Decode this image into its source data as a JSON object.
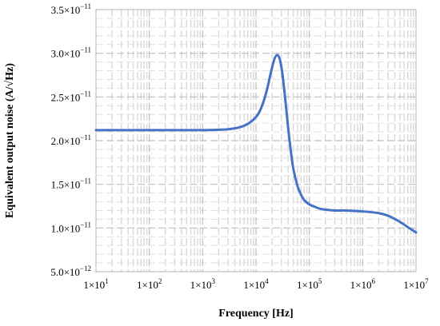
{
  "chart_data": {
    "type": "line",
    "xscale": "log",
    "xlim": [
      10,
      10000000
    ],
    "ylim": [
      5e-12,
      3.5e-11
    ],
    "xlabel": "Frequency [Hz]",
    "ylabel": "Equivalent output noise (A/√Hz)",
    "grid": true,
    "x_ticks": [
      {
        "value": 10,
        "mantissa": "1×10",
        "exp": "1"
      },
      {
        "value": 100,
        "mantissa": "1×10",
        "exp": "2"
      },
      {
        "value": 1000,
        "mantissa": "1×10",
        "exp": "3"
      },
      {
        "value": 10000,
        "mantissa": "1×10",
        "exp": "4"
      },
      {
        "value": 100000,
        "mantissa": "1×10",
        "exp": "5"
      },
      {
        "value": 1000000,
        "mantissa": "1×10",
        "exp": "6"
      },
      {
        "value": 10000000,
        "mantissa": "1×10",
        "exp": "7"
      }
    ],
    "y_ticks": [
      {
        "value": 5e-12,
        "mantissa": "5.0×10",
        "exp": "−12"
      },
      {
        "value": 1e-11,
        "mantissa": "1.0×10",
        "exp": "−11"
      },
      {
        "value": 1.5e-11,
        "mantissa": "1.5×10",
        "exp": "−11"
      },
      {
        "value": 2e-11,
        "mantissa": "2.0×10",
        "exp": "−11"
      },
      {
        "value": 2.5e-11,
        "mantissa": "2.5×10",
        "exp": "−11"
      },
      {
        "value": 3e-11,
        "mantissa": "3.0×10",
        "exp": "−11"
      },
      {
        "value": 3.5e-11,
        "mantissa": "3.5×10",
        "exp": "−11"
      }
    ],
    "series": [
      {
        "color": "#4472c4",
        "x": [
          10,
          100,
          1000,
          3000,
          6000,
          10000,
          13000,
          16000,
          19000,
          22000,
          25000,
          28000,
          31000,
          35000,
          40000,
          45000,
          50000,
          60000,
          70000,
          80000,
          100000,
          130000,
          160000,
          200000,
          300000,
          500000,
          1000000,
          2000000,
          3000000,
          5000000,
          7000000,
          10000000
        ],
        "y": [
          2.12e-11,
          2.12e-11,
          2.12e-11,
          2.13e-11,
          2.17e-11,
          2.27e-11,
          2.4e-11,
          2.58e-11,
          2.78e-11,
          2.93e-11,
          2.98e-11,
          2.93e-11,
          2.78e-11,
          2.5e-11,
          2.15e-11,
          1.88e-11,
          1.68e-11,
          1.48e-11,
          1.38e-11,
          1.32e-11,
          1.27e-11,
          1.24e-11,
          1.22e-11,
          1.21e-11,
          1.2e-11,
          1.2e-11,
          1.19e-11,
          1.17e-11,
          1.14e-11,
          1.07e-11,
          1.01e-11,
          9.5e-12
        ]
      }
    ]
  }
}
